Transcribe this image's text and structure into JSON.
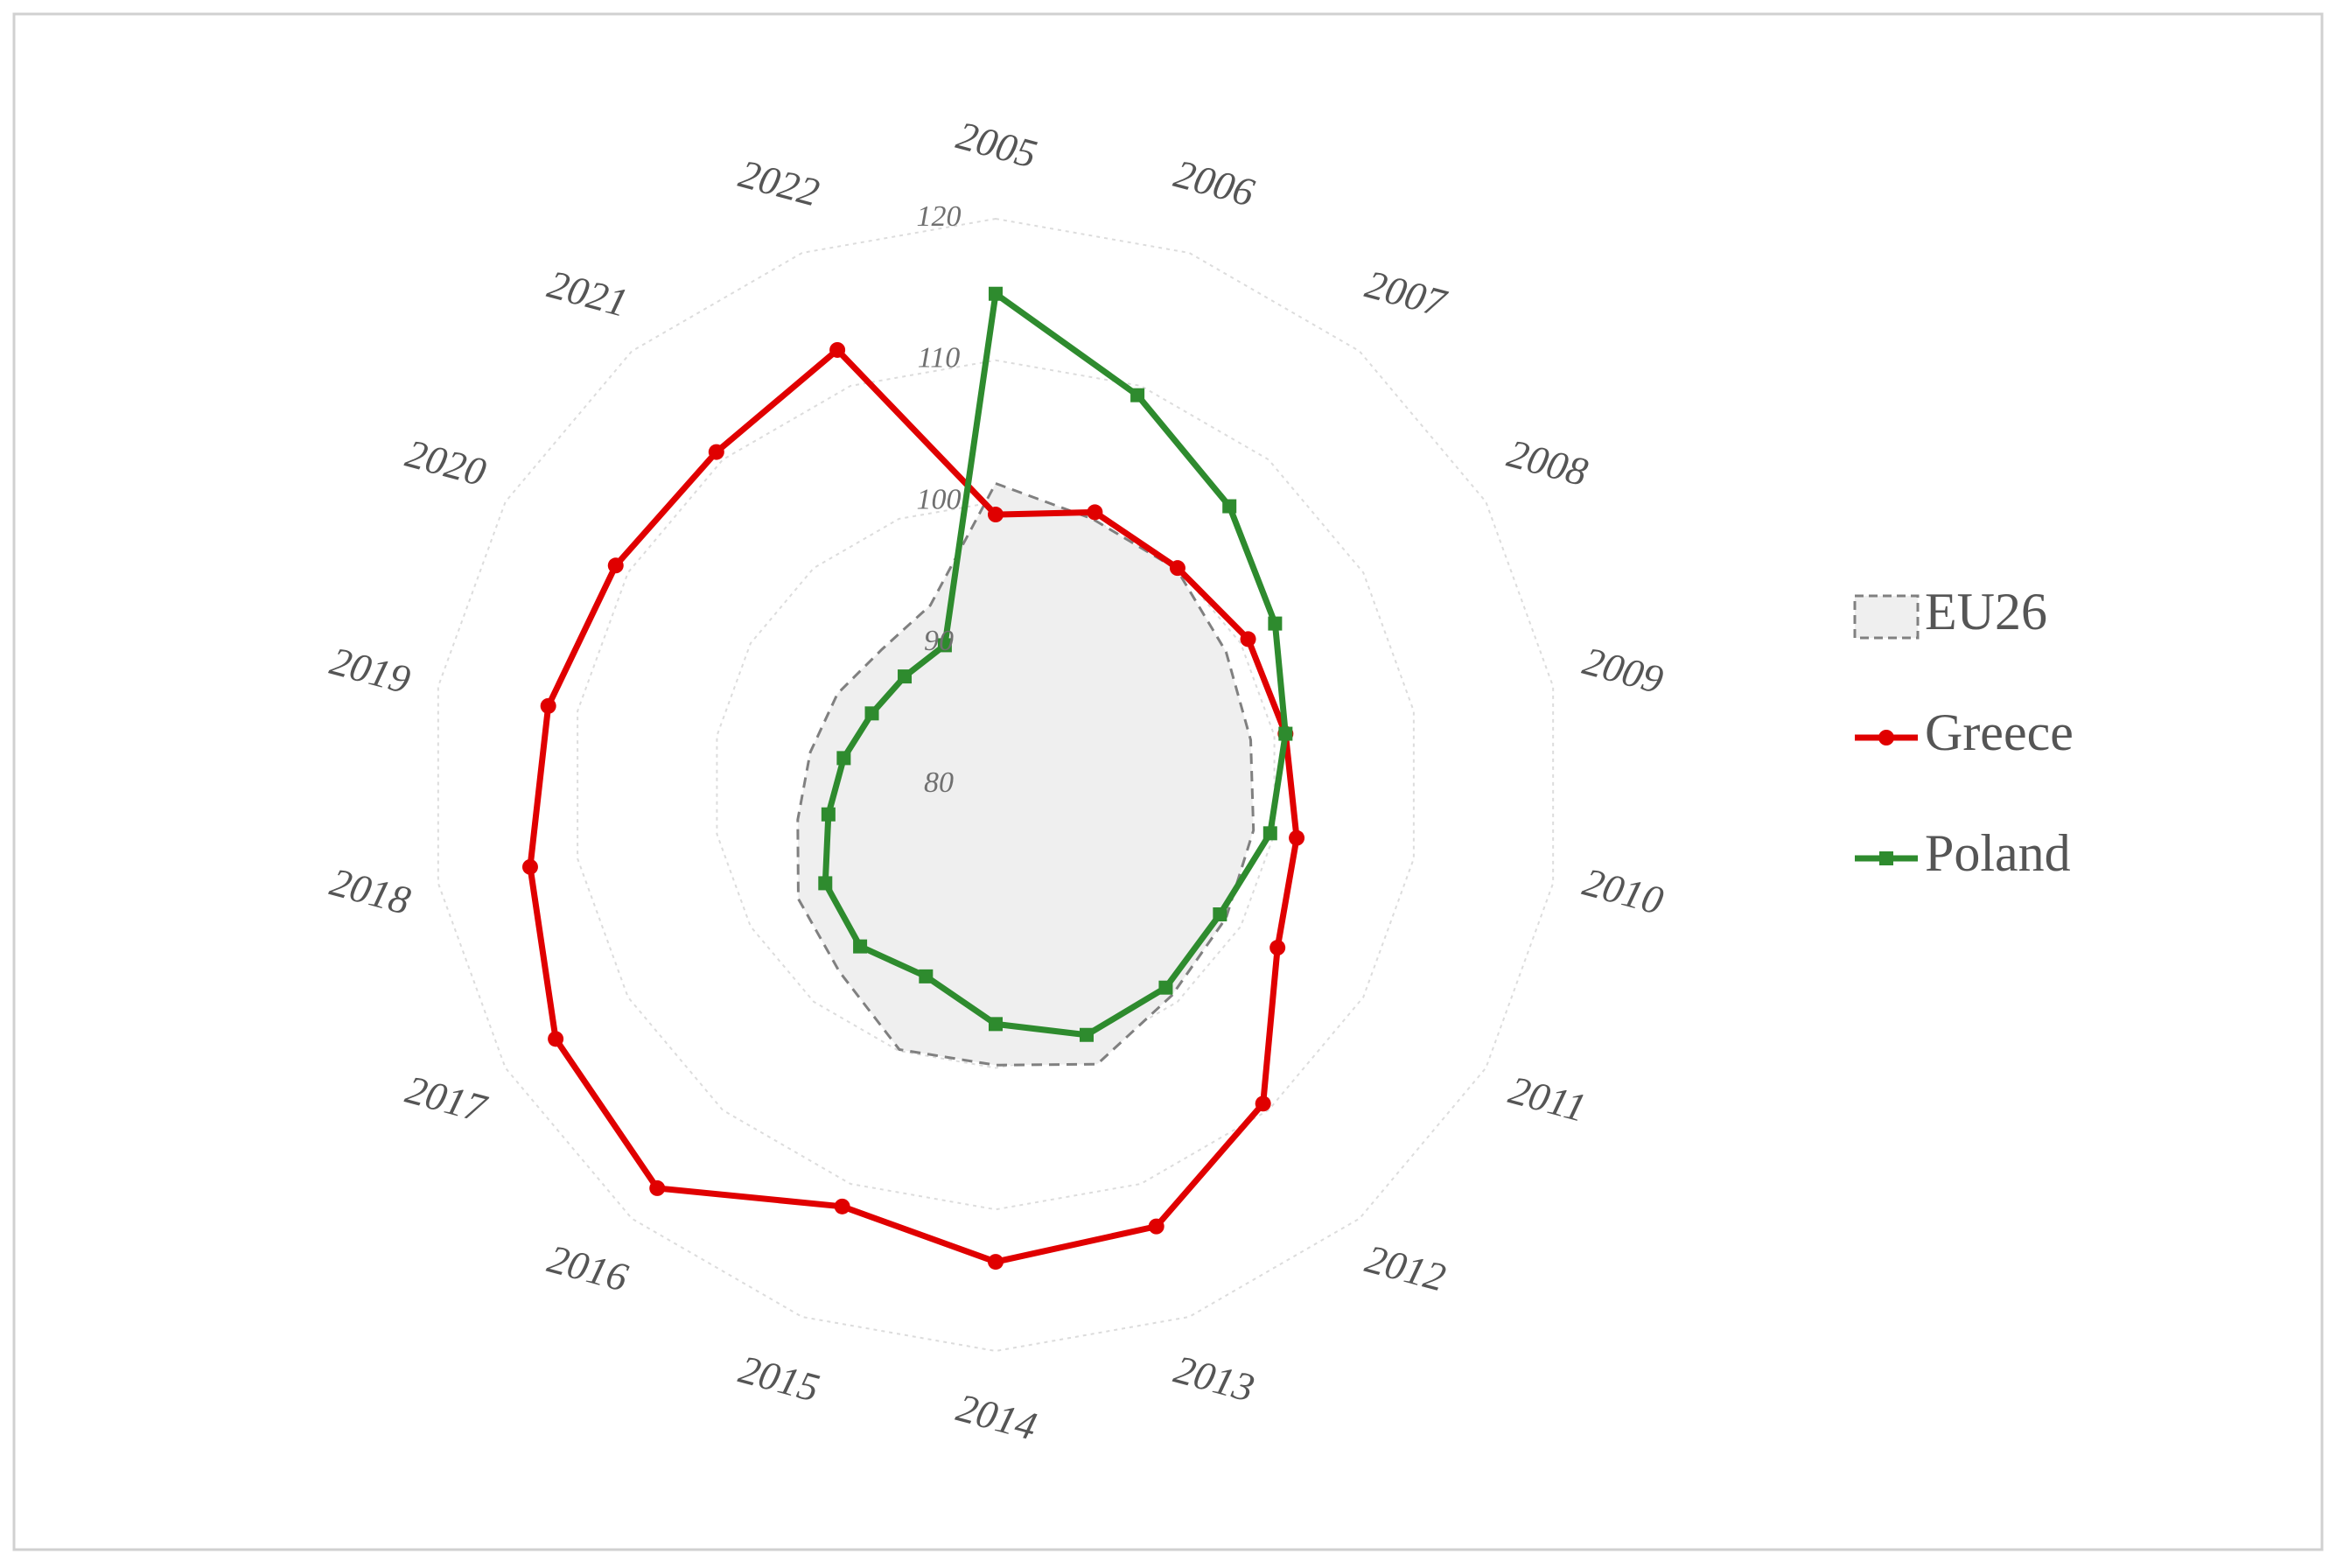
{
  "chart_data": {
    "type": "radar",
    "categories": [
      "2005",
      "2006",
      "2007",
      "2008",
      "2009",
      "2010",
      "2011",
      "2012",
      "2013",
      "2014",
      "2015",
      "2016",
      "2017",
      "2018",
      "2019",
      "2020",
      "2021",
      "2022"
    ],
    "rlim": [
      80,
      120
    ],
    "rticks": [
      80,
      90,
      100,
      110,
      120
    ],
    "grid": true,
    "legend": "right",
    "series": [
      {
        "name": "EU26",
        "color": "#808080",
        "fill": "#efefef",
        "style": "area",
        "values": [
          101.3,
          100.0,
          99.9,
          98.8,
          98.3,
          98.5,
          98.8,
          99.4,
          101.0,
          99.8,
          99.9,
          97.2,
          96.1,
          94.2,
          93.3,
          92.9,
          92.5,
          93.5
        ]
      },
      {
        "name": "Greece",
        "color": "#e00000",
        "marker": "circle",
        "style": "line",
        "values": [
          99.1,
          100.5,
          100.0,
          100.6,
          100.8,
          101.6,
          103.0,
          109.4,
          113.2,
          113.7,
          111.7,
          117.2,
          115.9,
          113.4,
          112.1,
          111.0,
          110.7,
          112.7
        ]
      },
      {
        "name": "Poland",
        "color": "#2e8b2e",
        "marker": "square",
        "style": "line",
        "values": [
          114.7,
          109.3,
          105.7,
          102.8,
          100.8,
          99.7,
          98.3,
          98.7,
          98.8,
          96.9,
          94.4,
          94.9,
          93.9,
          92.0,
          90.9,
          90.1,
          90.0,
          90.5
        ]
      }
    ]
  }
}
